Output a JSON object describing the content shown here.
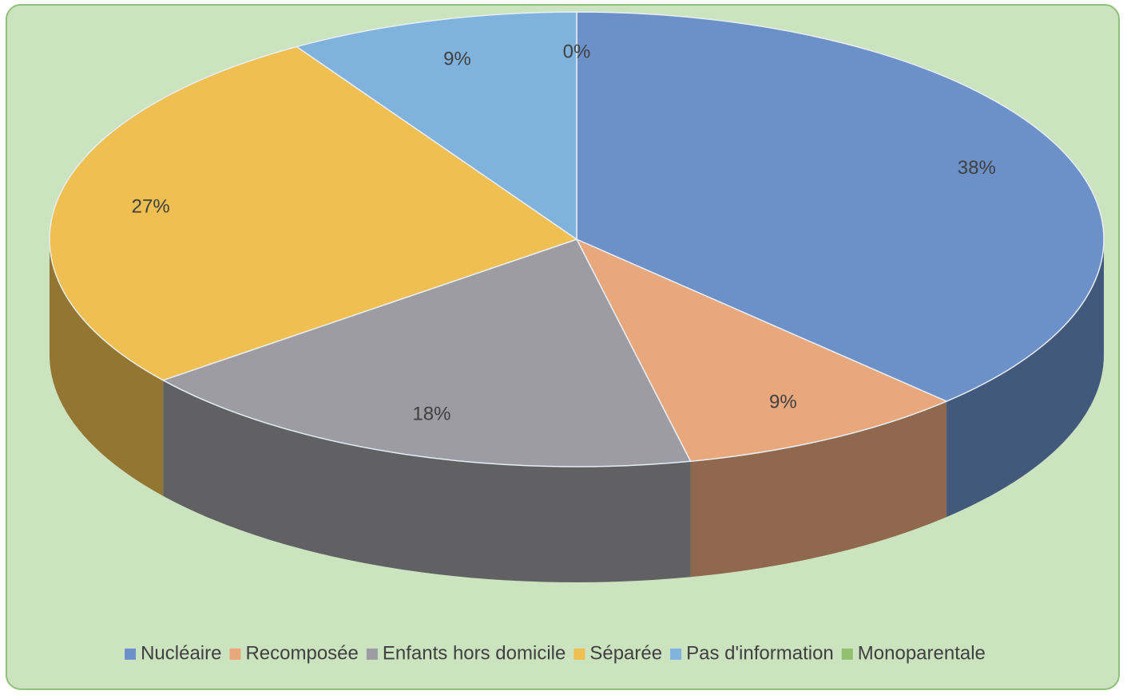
{
  "chart_data": {
    "type": "pie",
    "categories": [
      "Nucléaire",
      "Recomposée",
      "Enfants hors domicile",
      "Séparée",
      "Pas d'information",
      "Monoparentale"
    ],
    "values": [
      38,
      9,
      18,
      27,
      9,
      0
    ],
    "value_labels": [
      "38%",
      "9%",
      "18%",
      "27%",
      "9%",
      "0%"
    ],
    "colors": [
      "#6c90c8",
      "#e9a77c",
      "#9c9ca2",
      "#efbf52",
      "#80b2de",
      "#90c070"
    ],
    "legend": "bottom"
  }
}
